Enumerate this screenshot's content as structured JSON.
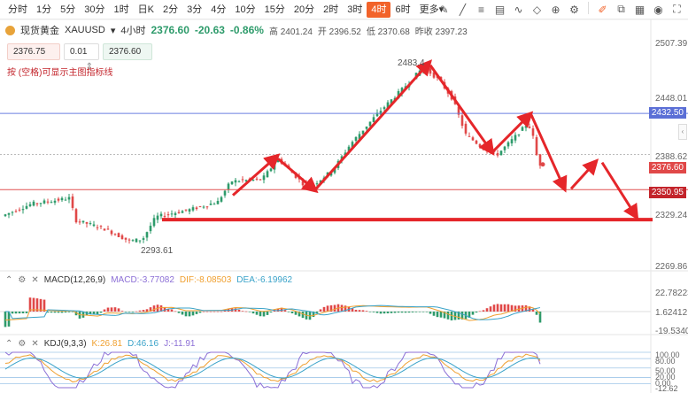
{
  "toolbar": {
    "timeframes": [
      "分时",
      "1分",
      "5分",
      "30分",
      "1时",
      "日K",
      "2分",
      "3分",
      "4分",
      "10分",
      "15分",
      "20分",
      "2时",
      "3时",
      "4时",
      "6时",
      "更多"
    ],
    "active_timeframe": "4时",
    "more_caret": "▾"
  },
  "symbol": {
    "name": "现货黄金",
    "code": "XAUUSD",
    "caret": "▾",
    "period": "4小时",
    "last": "2376.60",
    "change": "-20.63",
    "change_pct": "-0.86%",
    "high_label": "高",
    "high": "2401.24",
    "open_label": "开",
    "open": "2396.52",
    "low_label": "低",
    "low": "2370.68",
    "prev_label": "昨收",
    "prev": "2397.23"
  },
  "order": {
    "sell_price": "2376.75",
    "qty": "0.01",
    "buy_price": "2376.60",
    "stepper": "⇕"
  },
  "hint": "按 (空格)可显示主图指标线",
  "price_axis": {
    "labels": [
      "2507.39",
      "2448.01",
      "2388.62",
      "2329.24",
      "2269.86"
    ],
    "tags": [
      {
        "text": "2432.50",
        "color": "#5b6fd6"
      },
      {
        "text": "2376.60",
        "color": "#e04848"
      },
      {
        "text": "2350.95",
        "color": "#c3242b"
      }
    ]
  },
  "annotations": {
    "high_point": "2483.4",
    "low_point": "2293.61"
  },
  "macd": {
    "label": "MACD(12,26,9)",
    "macd": "MACD:-3.77082",
    "dif": "DIF:-8.08503",
    "dea": "DEA:-6.19962",
    "axis": [
      "22.78223",
      "1.62412",
      "-19.53400"
    ]
  },
  "kdj": {
    "label": "KDJ(9,3,3)",
    "k": "K:26.81",
    "d": "D:46.16",
    "j": "J:-11.91",
    "axis": [
      "100.00",
      "80.00",
      "50.00",
      "20.00",
      "0.00",
      "-12.62"
    ]
  },
  "colors": {
    "up": "#2e9b6b",
    "down": "#e04848",
    "accent": "#f2632a",
    "arrow": "#e5262a"
  }
}
